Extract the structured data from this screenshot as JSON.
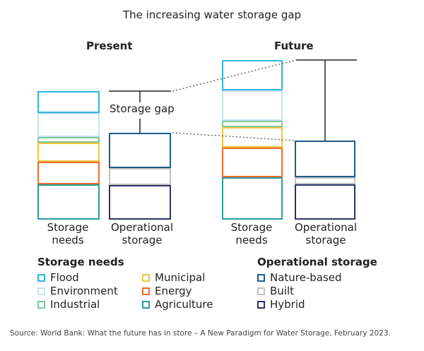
{
  "title": "The increasing water storage gap",
  "colors": {
    "flood": "#31b5de",
    "environment": "#c4e3f2",
    "industrial": "#7fc79b",
    "municipal": "#f5c342",
    "energy": "#ef6b2f",
    "agriculture": "#2a9d9b",
    "nature_based": "#1f5c8a",
    "built": "#c2c2c2",
    "hybrid": "#2c3468",
    "gap_line": "#222222"
  },
  "labels": {
    "storage_gap": "Storage gap",
    "storage_needs": [
      "Storage",
      "needs"
    ],
    "operational_storage": [
      "Operational",
      "storage"
    ]
  },
  "legend": {
    "storage_needs_title": "Storage needs",
    "operational_title": "Operational storage",
    "storage_needs_items": [
      {
        "label": "Flood",
        "color": "#31b5de"
      },
      {
        "label": "Environment",
        "color": "#c4e3f2"
      },
      {
        "label": "Industrial",
        "color": "#7fc79b"
      },
      {
        "label": "Municipal",
        "color": "#f5c342"
      },
      {
        "label": "Energy",
        "color": "#ef6b2f"
      },
      {
        "label": "Agriculture",
        "color": "#2a9d9b"
      }
    ],
    "operational_items": [
      {
        "label": "Nature-based",
        "color": "#1f5c8a"
      },
      {
        "label": "Built",
        "color": "#c2c2c2"
      },
      {
        "label": "Hybrid",
        "color": "#2c3468"
      }
    ]
  },
  "source": "Source: World Bank: What the future has in store – A New Paradigm for Water Storage, February 2023.",
  "chart_data": {
    "type": "bar",
    "stacked": true,
    "title": "The increasing water storage gap",
    "groups": [
      "Present",
      "Future"
    ],
    "categories": [
      "Storage needs",
      "Operational storage"
    ],
    "needs_series_order": [
      "Agriculture",
      "Energy",
      "Municipal",
      "Industrial",
      "Environment",
      "Flood"
    ],
    "operational_series_order": [
      "Hybrid",
      "Built",
      "Nature-based"
    ],
    "stacks": [
      {
        "group": "Present",
        "category": "Storage needs",
        "segments": [
          {
            "series": "Agriculture",
            "value": 50
          },
          {
            "series": "Energy",
            "value": 32
          },
          {
            "series": "Municipal",
            "value": 27
          },
          {
            "series": "Industrial",
            "value": 8
          },
          {
            "series": "Environment",
            "value": 34
          },
          {
            "series": "Flood",
            "value": 31
          }
        ]
      },
      {
        "group": "Present",
        "category": "Operational storage",
        "segments": [
          {
            "series": "Hybrid",
            "value": 49
          },
          {
            "series": "Built",
            "value": 24
          },
          {
            "series": "Nature-based",
            "value": 50
          }
        ]
      },
      {
        "group": "Future",
        "category": "Storage needs",
        "segments": [
          {
            "series": "Agriculture",
            "value": 60
          },
          {
            "series": "Energy",
            "value": 42
          },
          {
            "series": "Municipal",
            "value": 29
          },
          {
            "series": "Industrial",
            "value": 9
          },
          {
            "series": "Environment",
            "value": 43
          },
          {
            "series": "Flood",
            "value": 43
          }
        ]
      },
      {
        "group": "Future",
        "category": "Operational storage",
        "segments": [
          {
            "series": "Hybrid",
            "value": 50
          },
          {
            "series": "Built",
            "value": 10
          },
          {
            "series": "Nature-based",
            "value": 52
          }
        ]
      }
    ],
    "annotations": [
      "Storage gap"
    ],
    "ylim": [
      0,
      230
    ],
    "grid": false,
    "legend_placement": "bottom"
  }
}
